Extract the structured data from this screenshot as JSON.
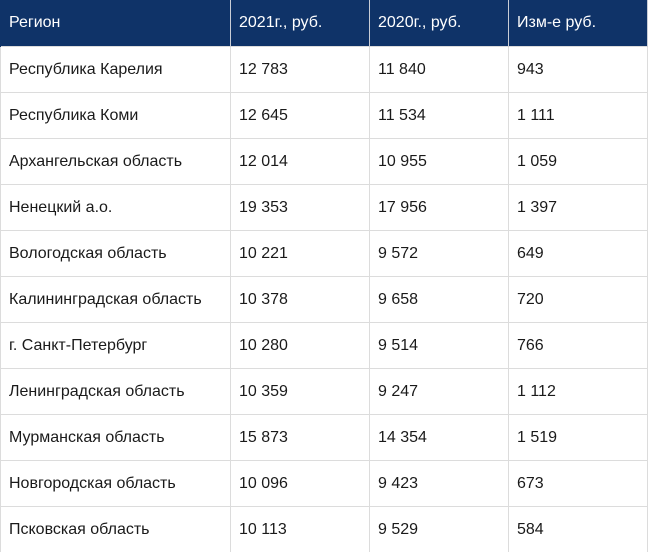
{
  "table": {
    "headers": [
      "Регион",
      "2021г., руб.",
      "2020г., руб.",
      "Изм-е руб."
    ],
    "rows": [
      [
        "Республика Карелия",
        "12 783",
        "11 840",
        "943"
      ],
      [
        "Республика Коми",
        "12 645",
        "11 534",
        "1 111"
      ],
      [
        "Архангельская область",
        "12 014",
        "10 955",
        "1 059"
      ],
      [
        "Ненецкий а.о.",
        "19 353",
        "17 956",
        "1 397"
      ],
      [
        "Вологодская область",
        "10 221",
        "9 572",
        "649"
      ],
      [
        "Калининградская область",
        "10 378",
        "9 658",
        "720"
      ],
      [
        "г. Санкт-Петербург",
        "10 280",
        "9 514",
        "766"
      ],
      [
        "Ленинградская область",
        "10 359",
        "9 247",
        "1 112"
      ],
      [
        "Мурманская область",
        "15 873",
        "14 354",
        "1 519"
      ],
      [
        "Новгородская область",
        "10 096",
        "9 423",
        "673"
      ],
      [
        "Псковская область",
        "10 113",
        "9 529",
        "584"
      ]
    ]
  },
  "colors": {
    "header_background": "#0f3368",
    "header_text": "#ffffff",
    "grid_line": "#dcdcdc"
  }
}
